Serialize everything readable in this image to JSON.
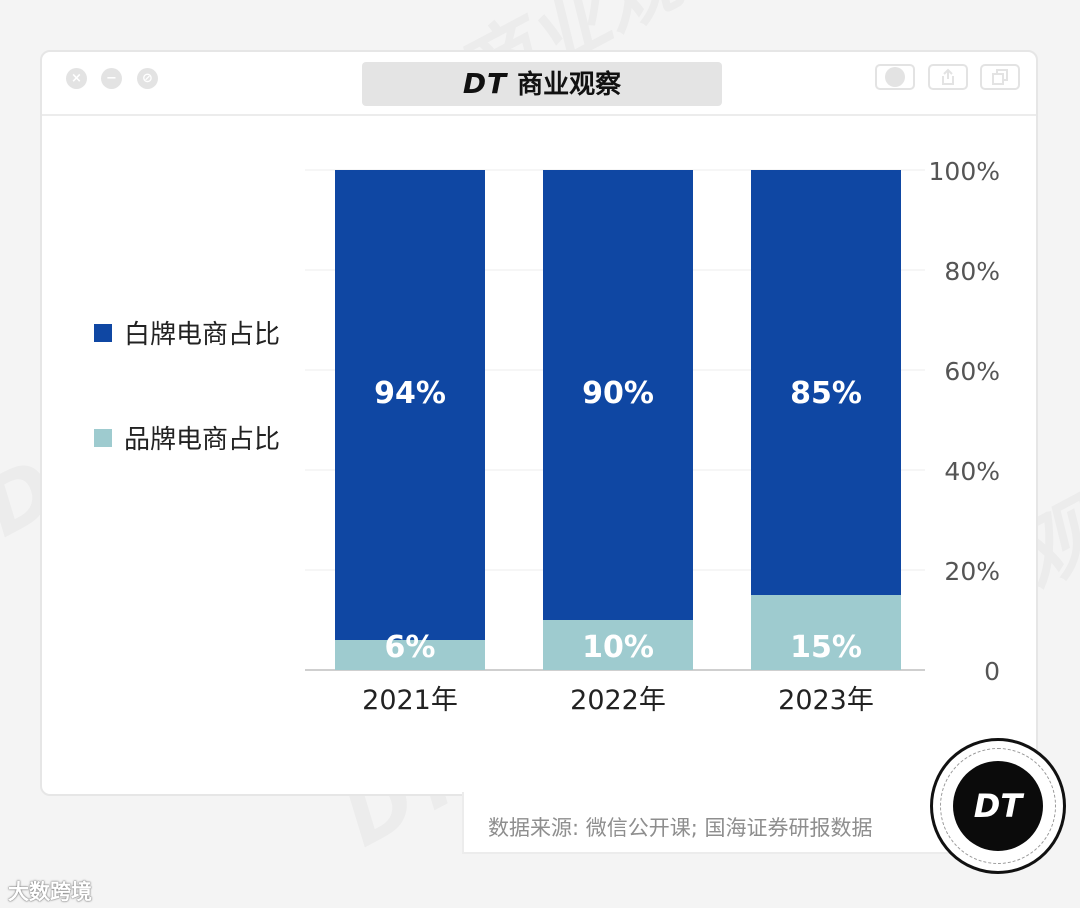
{
  "window": {
    "title_logo": "DT",
    "title_text": "商业观察",
    "controls": [
      "×",
      "−",
      "⊘"
    ]
  },
  "chart_data": {
    "type": "bar",
    "stacked": true,
    "categories": [
      "2021年",
      "2022年",
      "2023年"
    ],
    "series": [
      {
        "name": "品牌电商占比",
        "values": [
          6,
          10,
          15
        ],
        "labels": [
          "6%",
          "10%",
          "15%"
        ],
        "color": "#9ecbcf"
      },
      {
        "name": "白牌电商占比",
        "values": [
          94,
          90,
          85
        ],
        "labels": [
          "94%",
          "90%",
          "85%"
        ],
        "color": "#0f47a3"
      }
    ],
    "legend": [
      "白牌电商占比",
      "品牌电商占比"
    ],
    "y_ticks": [
      "0",
      "20%",
      "40%",
      "60%",
      "80%",
      "100%"
    ],
    "ylim": [
      0,
      100
    ],
    "legend_position": "left",
    "gridlines": true
  },
  "source": "数据来源: 微信公开课; 国海证券研报数据",
  "badge": "DT",
  "bottom_brand": "大数跨境",
  "watermarks": [
    "DT 商业观察",
    "DT 商业观察",
    "DT 商业观察",
    "商业观察"
  ],
  "colors": {
    "primary": "#0f47a3",
    "secondary": "#9ecbcf",
    "text": "#222222"
  }
}
